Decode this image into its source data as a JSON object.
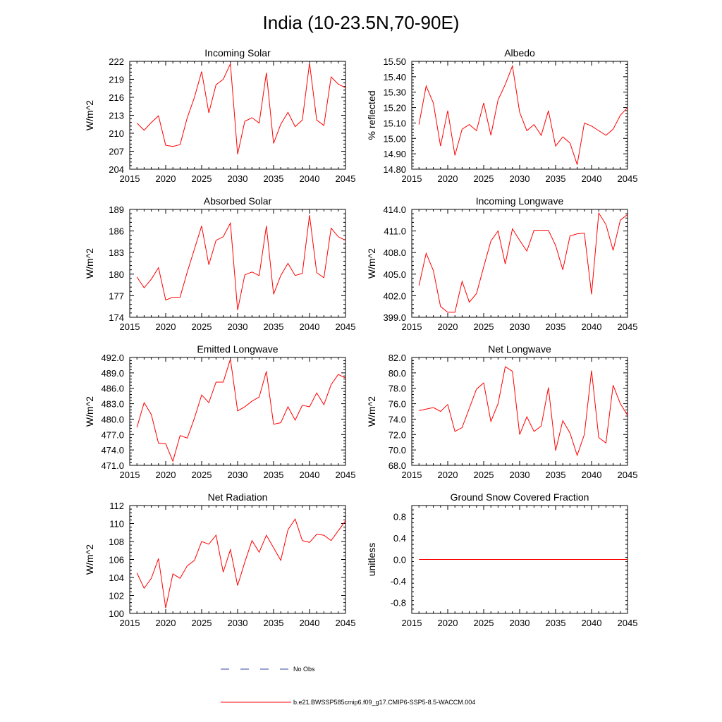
{
  "page_title": "India (10-23.5N,70-90E)",
  "legend": [
    {
      "label": "No Obs",
      "color": "#3344aa",
      "style": "dashed"
    },
    {
      "label": "b.e21.BWSSP585cmip6.f09_g17.CMIP6-SSP5-8.5-WACCM.004",
      "color": "#ff0000",
      "style": "solid"
    }
  ],
  "series_color": "#ff0000",
  "chart_data": [
    {
      "type": "line",
      "title": "Incoming Solar",
      "xlabel": "",
      "ylabel": "W/m^2",
      "xlim": [
        2015,
        2045
      ],
      "ylim": [
        204,
        222
      ],
      "xticks": [
        2015,
        2020,
        2025,
        2030,
        2035,
        2040,
        2045
      ],
      "yticks": [
        204,
        207,
        210,
        213,
        216,
        219,
        222
      ],
      "ytick_labels": [
        "204",
        "207",
        "210",
        "213",
        "216",
        "219",
        "222"
      ],
      "x": [
        2016,
        2017,
        2018,
        2019,
        2020,
        2021,
        2022,
        2023,
        2024,
        2025,
        2026,
        2027,
        2028,
        2029,
        2030,
        2031,
        2032,
        2033,
        2034,
        2035,
        2036,
        2037,
        2038,
        2039,
        2040,
        2041,
        2042,
        2043,
        2044,
        2045
      ],
      "values": [
        211.7,
        210.5,
        211.8,
        212.9,
        208.0,
        207.8,
        208.1,
        212.6,
        216.0,
        220.3,
        213.4,
        218.1,
        219.0,
        221.6,
        206.5,
        212.0,
        212.6,
        211.7,
        220.1,
        208.3,
        211.5,
        213.5,
        211.1,
        212.2,
        221.7,
        212.2,
        211.3,
        219.4,
        218.2,
        217.6
      ]
    },
    {
      "type": "line",
      "title": "Albedo",
      "xlabel": "",
      "ylabel": "% reflected",
      "xlim": [
        2015,
        2045
      ],
      "ylim": [
        14.8,
        15.5
      ],
      "xticks": [
        2015,
        2020,
        2025,
        2030,
        2035,
        2040,
        2045
      ],
      "yticks": [
        14.8,
        14.9,
        15.0,
        15.1,
        15.2,
        15.3,
        15.4,
        15.5
      ],
      "ytick_labels": [
        "14.80",
        "14.90",
        "15.00",
        "15.10",
        "15.20",
        "15.30",
        "15.40",
        "15.50"
      ],
      "x": [
        2016,
        2017,
        2018,
        2019,
        2020,
        2021,
        2022,
        2023,
        2024,
        2025,
        2026,
        2027,
        2028,
        2029,
        2030,
        2031,
        2032,
        2033,
        2034,
        2035,
        2036,
        2037,
        2038,
        2039,
        2040,
        2041,
        2042,
        2043,
        2044,
        2045
      ],
      "values": [
        15.09,
        15.34,
        15.23,
        14.95,
        15.18,
        14.89,
        15.06,
        15.09,
        15.05,
        15.23,
        15.02,
        15.25,
        15.35,
        15.47,
        15.17,
        15.05,
        15.09,
        15.02,
        15.18,
        14.95,
        15.01,
        14.97,
        14.83,
        15.1,
        15.08,
        15.05,
        15.02,
        15.06,
        15.15,
        15.2
      ]
    },
    {
      "type": "line",
      "title": "Absorbed Solar",
      "xlabel": "",
      "ylabel": "W/m^2",
      "xlim": [
        2015,
        2045
      ],
      "ylim": [
        174,
        189
      ],
      "xticks": [
        2015,
        2020,
        2025,
        2030,
        2035,
        2040,
        2045
      ],
      "yticks": [
        174,
        177,
        180,
        183,
        186,
        189
      ],
      "ytick_labels": [
        "174",
        "177",
        "180",
        "183",
        "186",
        "189"
      ],
      "x": [
        2016,
        2017,
        2018,
        2019,
        2020,
        2021,
        2022,
        2023,
        2024,
        2025,
        2026,
        2027,
        2028,
        2029,
        2030,
        2031,
        2032,
        2033,
        2034,
        2035,
        2036,
        2037,
        2038,
        2039,
        2040,
        2041,
        2042,
        2043,
        2044,
        2045
      ],
      "values": [
        179.6,
        178.1,
        179.3,
        180.9,
        176.4,
        176.8,
        176.8,
        180.3,
        183.5,
        186.7,
        181.3,
        184.7,
        185.2,
        187.1,
        175.0,
        179.9,
        180.3,
        179.8,
        186.7,
        177.2,
        179.8,
        181.5,
        179.8,
        180.1,
        188.2,
        180.2,
        179.5,
        186.4,
        185.2,
        184.7
      ]
    },
    {
      "type": "line",
      "title": "Incoming Longwave",
      "xlabel": "",
      "ylabel": "W/m^2",
      "xlim": [
        2015,
        2045
      ],
      "ylim": [
        399,
        414
      ],
      "xticks": [
        2015,
        2020,
        2025,
        2030,
        2035,
        2040,
        2045
      ],
      "yticks": [
        399,
        402,
        405,
        408,
        411,
        414
      ],
      "ytick_labels": [
        "399.0",
        "402.0",
        "405.0",
        "408.0",
        "411.0",
        "414.0"
      ],
      "x": [
        2016,
        2017,
        2018,
        2019,
        2020,
        2021,
        2022,
        2023,
        2024,
        2025,
        2026,
        2027,
        2028,
        2029,
        2030,
        2031,
        2032,
        2033,
        2034,
        2035,
        2036,
        2037,
        2038,
        2039,
        2040,
        2041,
        2042,
        2043,
        2044,
        2045
      ],
      "values": [
        403.4,
        407.9,
        405.5,
        400.5,
        399.7,
        399.7,
        404.0,
        401.1,
        402.3,
        406.0,
        409.6,
        411.0,
        406.4,
        411.3,
        409.7,
        408.2,
        411.1,
        411.1,
        411.1,
        409.0,
        405.6,
        410.3,
        410.6,
        410.7,
        402.2,
        413.5,
        411.9,
        408.3,
        412.5,
        413.3
      ]
    },
    {
      "type": "line",
      "title": "Emitted Longwave",
      "xlabel": "",
      "ylabel": "W/m^2",
      "xlim": [
        2015,
        2045
      ],
      "ylim": [
        471,
        492
      ],
      "xticks": [
        2015,
        2020,
        2025,
        2030,
        2035,
        2040,
        2045
      ],
      "yticks": [
        471,
        474,
        477,
        480,
        483,
        486,
        489,
        492
      ],
      "ytick_labels": [
        "471.0",
        "474.0",
        "477.0",
        "480.0",
        "483.0",
        "486.0",
        "489.0",
        "492.0"
      ],
      "x": [
        2016,
        2017,
        2018,
        2019,
        2020,
        2021,
        2022,
        2023,
        2024,
        2025,
        2026,
        2027,
        2028,
        2029,
        2030,
        2031,
        2032,
        2033,
        2034,
        2035,
        2036,
        2037,
        2038,
        2039,
        2040,
        2041,
        2042,
        2043,
        2044,
        2045
      ],
      "values": [
        478.4,
        483.2,
        480.9,
        475.3,
        475.2,
        471.8,
        476.8,
        476.3,
        480.2,
        484.7,
        483.2,
        487.2,
        487.2,
        491.7,
        481.6,
        482.4,
        483.5,
        484.3,
        489.3,
        479.0,
        479.3,
        482.4,
        479.8,
        482.7,
        482.4,
        485.1,
        482.8,
        486.7,
        488.7,
        488.0
      ]
    },
    {
      "type": "line",
      "title": "Net Longwave",
      "xlabel": "",
      "ylabel": "W/m^2",
      "xlim": [
        2015,
        2045
      ],
      "ylim": [
        68,
        82
      ],
      "xticks": [
        2015,
        2020,
        2025,
        2030,
        2035,
        2040,
        2045
      ],
      "yticks": [
        68,
        70,
        72,
        74,
        76,
        78,
        80,
        82
      ],
      "ytick_labels": [
        "68.0",
        "70.0",
        "72.0",
        "74.0",
        "76.0",
        "78.0",
        "80.0",
        "82.0"
      ],
      "x": [
        2016,
        2017,
        2018,
        2019,
        2020,
        2021,
        2022,
        2023,
        2024,
        2025,
        2026,
        2027,
        2028,
        2029,
        2030,
        2031,
        2032,
        2033,
        2034,
        2035,
        2036,
        2037,
        2038,
        2039,
        2040,
        2041,
        2042,
        2043,
        2044,
        2045
      ],
      "values": [
        75.1,
        75.3,
        75.5,
        75.0,
        75.9,
        72.4,
        72.9,
        75.4,
        77.9,
        78.7,
        73.7,
        76.0,
        80.8,
        80.2,
        72.0,
        74.3,
        72.4,
        73.1,
        78.1,
        69.9,
        73.8,
        72.2,
        69.3,
        72.0,
        80.3,
        71.6,
        70.9,
        78.4,
        76.0,
        74.5
      ]
    },
    {
      "type": "line",
      "title": "Net Radiation",
      "xlabel": "",
      "ylabel": "W/m^2",
      "xlim": [
        2015,
        2045
      ],
      "ylim": [
        100,
        112
      ],
      "xticks": [
        2015,
        2020,
        2025,
        2030,
        2035,
        2040,
        2045
      ],
      "yticks": [
        100,
        102,
        104,
        106,
        108,
        110,
        112
      ],
      "ytick_labels": [
        "100",
        "102",
        "104",
        "106",
        "108",
        "110",
        "112"
      ],
      "x": [
        2016,
        2017,
        2018,
        2019,
        2020,
        2021,
        2022,
        2023,
        2024,
        2025,
        2026,
        2027,
        2028,
        2029,
        2030,
        2031,
        2032,
        2033,
        2034,
        2035,
        2036,
        2037,
        2038,
        2039,
        2040,
        2041,
        2042,
        2043,
        2044,
        2045
      ],
      "values": [
        104.5,
        102.8,
        103.9,
        106.1,
        100.6,
        104.4,
        103.9,
        105.3,
        105.9,
        108.0,
        107.7,
        108.7,
        104.6,
        107.1,
        103.1,
        105.7,
        108.1,
        106.8,
        108.7,
        107.3,
        105.9,
        109.3,
        110.5,
        108.1,
        107.9,
        108.8,
        108.7,
        108.1,
        109.2,
        110.3
      ]
    },
    {
      "type": "line",
      "title": "Ground Snow Covered Fraction",
      "xlabel": "",
      "ylabel": "unitless",
      "xlim": [
        2015,
        2045
      ],
      "ylim": [
        -1.0,
        1.0
      ],
      "xticks": [
        2015,
        2020,
        2025,
        2030,
        2035,
        2040,
        2045
      ],
      "yticks": [
        -0.8,
        -0.4,
        0.0,
        0.4,
        0.8
      ],
      "ytick_labels": [
        "-0.8",
        "-0.4",
        "0.0",
        "0.4",
        "0.8"
      ],
      "x": [
        2016,
        2017,
        2018,
        2019,
        2020,
        2021,
        2022,
        2023,
        2024,
        2025,
        2026,
        2027,
        2028,
        2029,
        2030,
        2031,
        2032,
        2033,
        2034,
        2035,
        2036,
        2037,
        2038,
        2039,
        2040,
        2041,
        2042,
        2043,
        2044,
        2045
      ],
      "values": [
        0,
        0,
        0,
        0,
        0,
        0,
        0,
        0,
        0,
        0,
        0,
        0,
        0,
        0,
        0,
        0,
        0,
        0,
        0,
        0,
        0,
        0,
        0,
        0,
        0,
        0,
        0,
        0,
        0,
        0
      ]
    }
  ]
}
